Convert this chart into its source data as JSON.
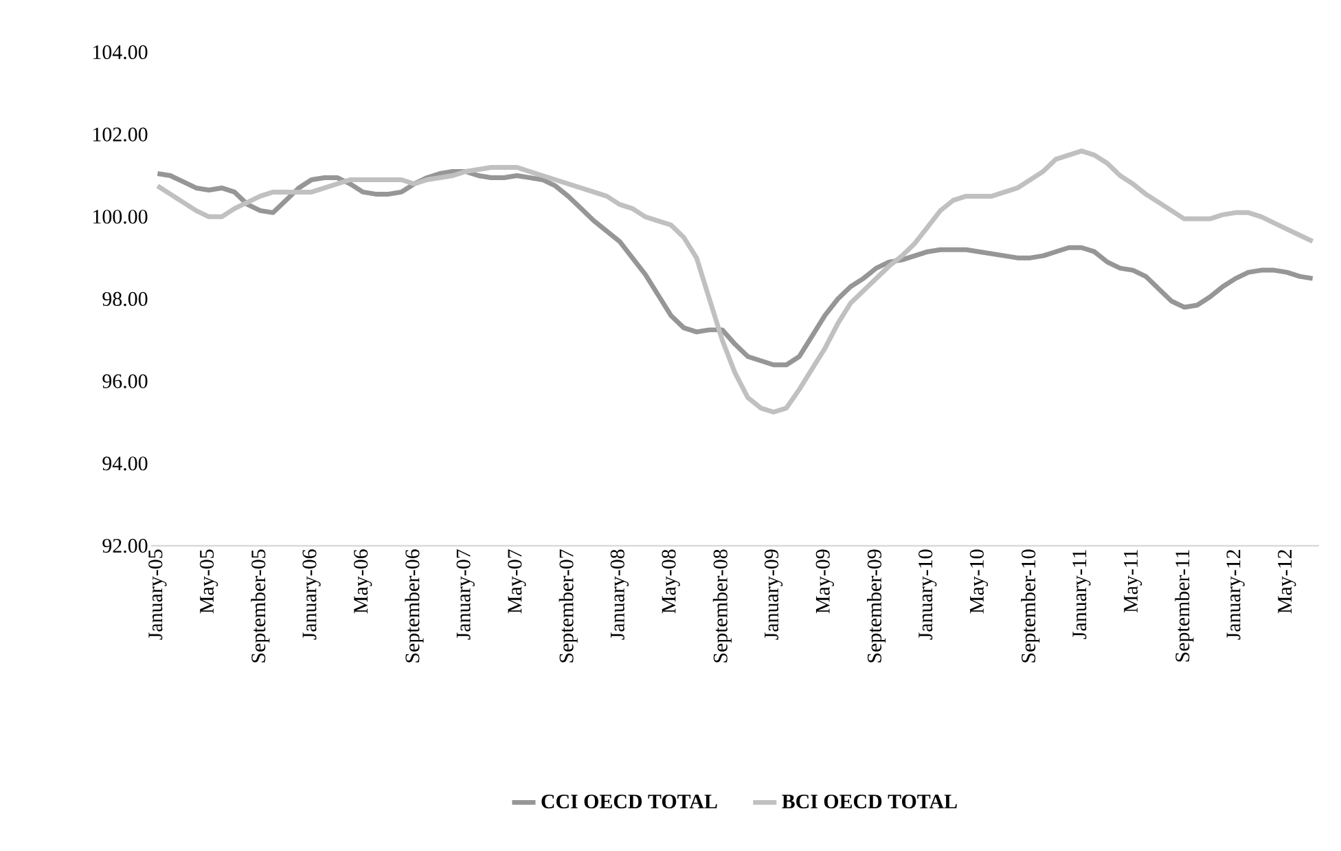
{
  "chart_data": {
    "type": "line",
    "categories": [
      "January-05",
      null,
      null,
      null,
      "May-05",
      null,
      null,
      null,
      "September-05",
      null,
      null,
      null,
      "January-06",
      null,
      null,
      null,
      "May-06",
      null,
      null,
      null,
      "September-06",
      null,
      null,
      null,
      "January-07",
      null,
      null,
      null,
      "May-07",
      null,
      null,
      null,
      "September-07",
      null,
      null,
      null,
      "January-08",
      null,
      null,
      null,
      "May-08",
      null,
      null,
      null,
      "September-08",
      null,
      null,
      null,
      "January-09",
      null,
      null,
      null,
      "May-09",
      null,
      null,
      null,
      "September-09",
      null,
      null,
      null,
      "January-10",
      null,
      null,
      null,
      "May-10",
      null,
      null,
      null,
      "September-10",
      null,
      null,
      null,
      "January-11",
      null,
      null,
      null,
      "May-11",
      null,
      null,
      null,
      "September-11",
      null,
      null,
      null,
      "January-12",
      null,
      null,
      null,
      "May-12",
      null,
      null
    ],
    "series": [
      {
        "name": "CCI OECD TOTAL",
        "color": "#969696",
        "values": [
          101.05,
          101.0,
          100.85,
          100.7,
          100.65,
          100.7,
          100.6,
          100.3,
          100.15,
          100.1,
          100.4,
          100.7,
          100.9,
          100.95,
          100.95,
          100.8,
          100.6,
          100.55,
          100.55,
          100.6,
          100.8,
          100.95,
          101.05,
          101.1,
          101.1,
          101.0,
          100.95,
          100.95,
          101.0,
          100.95,
          100.9,
          100.75,
          100.5,
          100.2,
          99.9,
          99.65,
          99.4,
          99.0,
          98.6,
          98.1,
          97.6,
          97.3,
          97.2,
          97.25,
          97.25,
          96.9,
          96.6,
          96.5,
          96.4,
          96.4,
          96.6,
          97.1,
          97.6,
          98.0,
          98.3,
          98.5,
          98.75,
          98.9,
          98.95,
          99.05,
          99.15,
          99.2,
          99.2,
          99.2,
          99.15,
          99.1,
          99.05,
          99.0,
          99.0,
          99.05,
          99.15,
          99.25,
          99.25,
          99.15,
          98.9,
          98.75,
          98.7,
          98.55,
          98.25,
          97.95,
          97.8,
          97.85,
          98.05,
          98.3,
          98.5,
          98.65,
          98.7,
          98.7,
          98.65,
          98.55,
          98.5
        ]
      },
      {
        "name": "BCI OECD TOTAL",
        "color": "#c0c0c0",
        "values": [
          100.75,
          100.55,
          100.35,
          100.15,
          100.0,
          100.0,
          100.2,
          100.35,
          100.5,
          100.6,
          100.6,
          100.6,
          100.6,
          100.7,
          100.8,
          100.9,
          100.9,
          100.9,
          100.9,
          100.9,
          100.8,
          100.9,
          100.95,
          101.0,
          101.1,
          101.15,
          101.2,
          101.2,
          101.2,
          101.1,
          101.0,
          100.9,
          100.8,
          100.7,
          100.6,
          100.5,
          100.3,
          100.2,
          100.0,
          99.9,
          99.8,
          99.5,
          99.0,
          98.0,
          97.0,
          96.2,
          95.6,
          95.35,
          95.25,
          95.35,
          95.8,
          96.3,
          96.8,
          97.4,
          97.9,
          98.2,
          98.5,
          98.8,
          99.05,
          99.35,
          99.75,
          100.15,
          100.4,
          100.5,
          100.5,
          100.5,
          100.6,
          100.7,
          100.9,
          101.1,
          101.4,
          101.5,
          101.6,
          101.5,
          101.3,
          101.0,
          100.8,
          100.55,
          100.35,
          100.15,
          99.95,
          99.95,
          99.95,
          100.05,
          100.1,
          100.1,
          100.0,
          99.85,
          99.7,
          99.55,
          99.4
        ]
      }
    ],
    "ylim": [
      92,
      104
    ],
    "yticks": [
      {
        "value": 92,
        "label": "92.00"
      },
      {
        "value": 94,
        "label": "94.00"
      },
      {
        "value": 96,
        "label": "96.00"
      },
      {
        "value": 98,
        "label": "98.00"
      },
      {
        "value": 100,
        "label": "100.00"
      },
      {
        "value": 102,
        "label": "102.00"
      },
      {
        "value": 104,
        "label": "104.00"
      }
    ],
    "legend": "bottom",
    "marker": "none",
    "line_style": "solid"
  }
}
